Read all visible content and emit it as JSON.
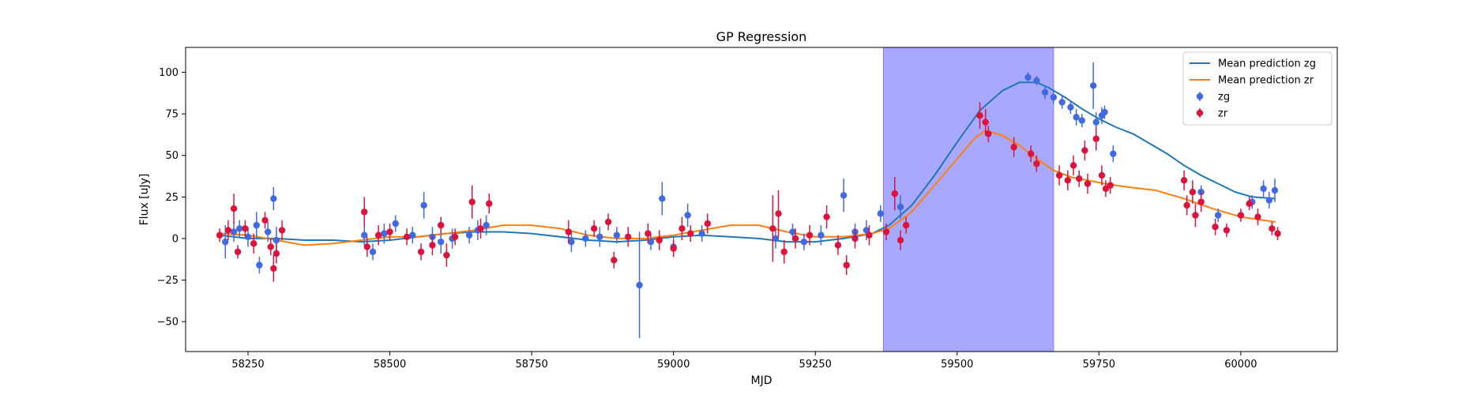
{
  "chart_data": {
    "type": "scatter",
    "title": "GP Regression",
    "xlabel": "MJD",
    "ylabel": "Flux [uJy]",
    "xlim": [
      58140,
      60170
    ],
    "ylim": [
      -68,
      115
    ],
    "xticks": [
      58250,
      58500,
      58750,
      59000,
      59250,
      59500,
      59750,
      60000
    ],
    "yticks": [
      -50,
      -25,
      0,
      25,
      50,
      75,
      100
    ],
    "grid": false,
    "legend_position": "top-right",
    "highlight_span": {
      "x0": 59370,
      "x1": 59670,
      "color": "#a8a8ff"
    },
    "legend": [
      {
        "label": "Mean prediction zg",
        "kind": "line",
        "color": "#1f77b4"
      },
      {
        "label": "Mean prediction zr",
        "kind": "line",
        "color": "#ff7f0e"
      },
      {
        "label": "zg",
        "kind": "errorbar",
        "color": "#4169e1"
      },
      {
        "label": "zr",
        "kind": "errorbar",
        "color": "#dc143c"
      }
    ],
    "series": [
      {
        "name": "Mean prediction zg",
        "kind": "line",
        "color": "#1f77b4",
        "x": [
          58200,
          58250,
          58300,
          58350,
          58400,
          58450,
          58500,
          58550,
          58600,
          58650,
          58700,
          58750,
          58800,
          58850,
          58900,
          58950,
          59000,
          59050,
          59100,
          59150,
          59200,
          59250,
          59300,
          59350,
          59380,
          59420,
          59460,
          59500,
          59540,
          59580,
          59610,
          59640,
          59660,
          59690,
          59720,
          59750,
          59780,
          59810,
          59840,
          59870,
          59900,
          59930,
          59960,
          59990,
          60020,
          60060
        ],
        "y": [
          2,
          0,
          0,
          -1,
          -1,
          -2,
          -1,
          1,
          3,
          4,
          4,
          3,
          1,
          -1,
          -2,
          -1,
          1,
          2,
          1,
          0,
          -2,
          -2,
          0,
          3,
          8,
          20,
          38,
          58,
          77,
          89,
          94,
          94,
          91,
          85,
          78,
          72,
          67,
          63,
          57,
          51,
          44,
          38,
          33,
          28,
          25,
          24
        ]
      },
      {
        "name": "Mean prediction zr",
        "kind": "line",
        "color": "#ff7f0e",
        "x": [
          58200,
          58250,
          58300,
          58350,
          58400,
          58450,
          58500,
          58550,
          58600,
          58650,
          58700,
          58750,
          58800,
          58850,
          58900,
          58950,
          59000,
          59050,
          59100,
          59150,
          59200,
          59250,
          59300,
          59350,
          59380,
          59420,
          59460,
          59500,
          59530,
          59550,
          59580,
          59610,
          59640,
          59670,
          59700,
          59730,
          59760,
          59800,
          59850,
          59900,
          59950,
          60000,
          60060
        ],
        "y": [
          3,
          2,
          -1,
          -4,
          -3,
          -1,
          1,
          1,
          3,
          5,
          8,
          8,
          6,
          2,
          0,
          0,
          2,
          5,
          8,
          8,
          4,
          1,
          1,
          3,
          6,
          16,
          32,
          48,
          60,
          65,
          62,
          56,
          48,
          41,
          37,
          35,
          33,
          31,
          29,
          24,
          18,
          13,
          10
        ]
      },
      {
        "name": "zg",
        "kind": "errorbar",
        "color": "#4169e1",
        "points": [
          [
            58210,
            -2,
            10
          ],
          [
            58225,
            4,
            6
          ],
          [
            58235,
            6,
            5
          ],
          [
            58250,
            1,
            6
          ],
          [
            58265,
            8,
            8
          ],
          [
            58270,
            -16,
            5
          ],
          [
            58285,
            4,
            6
          ],
          [
            58295,
            24,
            7
          ],
          [
            58300,
            -1,
            8
          ],
          [
            58455,
            2,
            6
          ],
          [
            58470,
            -8,
            5
          ],
          [
            58490,
            3,
            6
          ],
          [
            58510,
            9,
            5
          ],
          [
            58540,
            2,
            5
          ],
          [
            58560,
            20,
            8
          ],
          [
            58575,
            1,
            6
          ],
          [
            58590,
            -2,
            7
          ],
          [
            58610,
            0,
            6
          ],
          [
            58640,
            2,
            5
          ],
          [
            58655,
            5,
            6
          ],
          [
            58670,
            8,
            6
          ],
          [
            58820,
            -2,
            6
          ],
          [
            58845,
            0,
            5
          ],
          [
            58870,
            1,
            6
          ],
          [
            58900,
            2,
            5
          ],
          [
            58940,
            -28,
            32
          ],
          [
            58960,
            -2,
            5
          ],
          [
            58980,
            24,
            10
          ],
          [
            59000,
            -5,
            6
          ],
          [
            59025,
            14,
            7
          ],
          [
            59050,
            3,
            5
          ],
          [
            59180,
            0,
            6
          ],
          [
            59210,
            4,
            5
          ],
          [
            59230,
            -2,
            5
          ],
          [
            59260,
            2,
            6
          ],
          [
            59300,
            26,
            10
          ],
          [
            59320,
            4,
            5
          ],
          [
            59340,
            5,
            6
          ],
          [
            59365,
            15,
            5
          ],
          [
            59400,
            19,
            7
          ],
          [
            59625,
            97,
            3
          ],
          [
            59640,
            95,
            3
          ],
          [
            59655,
            88,
            4
          ],
          [
            59670,
            85,
            4
          ],
          [
            59685,
            82,
            4
          ],
          [
            59700,
            79,
            4
          ],
          [
            59710,
            73,
            5
          ],
          [
            59720,
            71,
            4
          ],
          [
            59740,
            92,
            14
          ],
          [
            59745,
            70,
            6
          ],
          [
            59755,
            74,
            5
          ],
          [
            59760,
            76,
            4
          ],
          [
            59775,
            51,
            5
          ],
          [
            59930,
            28,
            4
          ],
          [
            59960,
            14,
            4
          ],
          [
            60020,
            22,
            4
          ],
          [
            60040,
            30,
            5
          ],
          [
            60050,
            23,
            5
          ],
          [
            60060,
            29,
            7
          ]
        ]
      },
      {
        "name": "zr",
        "kind": "errorbar",
        "color": "#dc143c",
        "points": [
          [
            58200,
            2,
            4
          ],
          [
            58215,
            5,
            6
          ],
          [
            58225,
            18,
            9
          ],
          [
            58232,
            -8,
            4
          ],
          [
            58245,
            6,
            5
          ],
          [
            58260,
            -3,
            6
          ],
          [
            58280,
            11,
            5
          ],
          [
            58290,
            -5,
            5
          ],
          [
            58295,
            -18,
            8
          ],
          [
            58300,
            -9,
            6
          ],
          [
            58310,
            5,
            6
          ],
          [
            58455,
            16,
            9
          ],
          [
            58460,
            -5,
            6
          ],
          [
            58480,
            2,
            6
          ],
          [
            58500,
            4,
            5
          ],
          [
            58530,
            1,
            5
          ],
          [
            58555,
            -8,
            5
          ],
          [
            58575,
            -4,
            6
          ],
          [
            58590,
            8,
            5
          ],
          [
            58600,
            -10,
            7
          ],
          [
            58615,
            1,
            5
          ],
          [
            58645,
            22,
            10
          ],
          [
            58660,
            6,
            6
          ],
          [
            58675,
            21,
            6
          ],
          [
            58815,
            4,
            7
          ],
          [
            58860,
            6,
            5
          ],
          [
            58885,
            10,
            5
          ],
          [
            58895,
            -13,
            5
          ],
          [
            58920,
            1,
            6
          ],
          [
            58955,
            3,
            6
          ],
          [
            58975,
            -1,
            6
          ],
          [
            59000,
            -6,
            5
          ],
          [
            59015,
            6,
            7
          ],
          [
            59030,
            3,
            5
          ],
          [
            59060,
            9,
            6
          ],
          [
            59175,
            6,
            20
          ],
          [
            59185,
            15,
            14
          ],
          [
            59195,
            -8,
            7
          ],
          [
            59215,
            0,
            6
          ],
          [
            59240,
            2,
            6
          ],
          [
            59270,
            13,
            7
          ],
          [
            59290,
            -4,
            6
          ],
          [
            59305,
            -16,
            6
          ],
          [
            59320,
            0,
            6
          ],
          [
            59345,
            2,
            6
          ],
          [
            59375,
            4,
            5
          ],
          [
            59390,
            27,
            10
          ],
          [
            59400,
            -1,
            6
          ],
          [
            59410,
            8,
            5
          ],
          [
            59540,
            74,
            8
          ],
          [
            59550,
            70,
            8
          ],
          [
            59555,
            63,
            5
          ],
          [
            59600,
            55,
            6
          ],
          [
            59630,
            51,
            5
          ],
          [
            59640,
            45,
            5
          ],
          [
            59680,
            38,
            6
          ],
          [
            59695,
            35,
            6
          ],
          [
            59705,
            44,
            6
          ],
          [
            59715,
            36,
            5
          ],
          [
            59725,
            53,
            6
          ],
          [
            59730,
            33,
            6
          ],
          [
            59745,
            60,
            7
          ],
          [
            59755,
            38,
            6
          ],
          [
            59762,
            30,
            5
          ],
          [
            59770,
            32,
            5
          ],
          [
            59900,
            35,
            6
          ],
          [
            59905,
            20,
            6
          ],
          [
            59915,
            28,
            7
          ],
          [
            59920,
            14,
            7
          ],
          [
            59930,
            22,
            6
          ],
          [
            59955,
            7,
            5
          ],
          [
            59975,
            5,
            4
          ],
          [
            60000,
            14,
            4
          ],
          [
            60015,
            21,
            4
          ],
          [
            60030,
            13,
            5
          ],
          [
            60055,
            6,
            4
          ],
          [
            60065,
            3,
            4
          ]
        ]
      }
    ]
  }
}
